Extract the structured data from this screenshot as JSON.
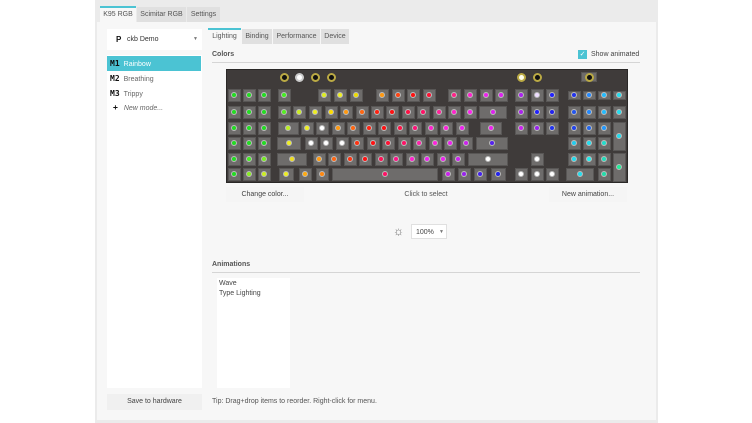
{
  "device_tabs": [
    {
      "label": "K95 RGB",
      "active": true
    },
    {
      "label": "Scimitar RGB"
    },
    {
      "label": "Settings"
    }
  ],
  "profile": {
    "letter": "P",
    "name": "ckb Demo"
  },
  "modes": [
    {
      "id": "M1",
      "name": "Rainbow",
      "selected": true
    },
    {
      "id": "M2",
      "name": "Breathing"
    },
    {
      "id": "M3",
      "name": "Trippy"
    }
  ],
  "new_mode": {
    "icon": "+",
    "label": "New mode..."
  },
  "save_hardware": "Save to hardware",
  "sub_tabs": [
    {
      "label": "Lighting",
      "active": true
    },
    {
      "label": "Binding"
    },
    {
      "label": "Performance"
    },
    {
      "label": "Device"
    }
  ],
  "colors_label": "Colors",
  "show_animated": {
    "label": "Show animated",
    "checked": true
  },
  "accent": "#4bc3d3",
  "keyboard": {
    "top_row": [
      "#111111",
      "#ffffff",
      "#111111",
      "#111111",
      "#ffffee",
      "#111111",
      "#111111"
    ],
    "rows": [
      [
        "#22dd22",
        "#22dd22",
        "#22dd22",
        "#44ee22",
        "#ddee22",
        "#eeee22",
        "#eedd00",
        "#ff9911",
        "#ff4411",
        "#ff1111",
        "#ff1133",
        "#ff2288",
        "#ff22cc",
        "#ee22ee",
        "#dd22ee",
        "#aa22ee",
        "#eeddff",
        "#2222ff",
        "#2233ee",
        "#2288ff",
        "#22bbff",
        "#22ddee",
        "#22eeee"
      ],
      [
        "#22dd22",
        "#22dd22",
        "#22dd22",
        "#55ee22",
        "#ccee22",
        "#eeee22",
        "#ffdd00",
        "#ff9911",
        "#ff6611",
        "#ff2211",
        "#ff1111",
        "#ff1144",
        "#ff1166",
        "#ff2299",
        "#ff22cc",
        "#ff22ee",
        "#dd22ee",
        "#aa22ee",
        "#2222ff",
        "#2222ee",
        "#2255ee",
        "#2288ff",
        "#22bbff",
        "#22ddee",
        "#22eecc"
      ],
      [
        "#22dd22",
        "#22dd22",
        "#22dd22",
        "#bbee22",
        "#eeee22",
        "#ffffff",
        "#ff9911",
        "#ff6611",
        "#ff2211",
        "#ff1111",
        "#ff1144",
        "#ff1177",
        "#ff22cc",
        "#ff22dd",
        "#ee22ee",
        "#ee22ee",
        "#cc22ee",
        "#9922ee",
        "#2233ee",
        "#2244ee",
        "#2266ee",
        "#2299ff",
        "#22ddee",
        "#22ddcc",
        "#22ccaa"
      ],
      [
        "#22dd22",
        "#22dd22",
        "#22dd22",
        "#eeee22",
        "#ffffff",
        "#ffffff",
        "#ffffff",
        "#ff3311",
        "#ff1111",
        "#ff1133",
        "#ff1166",
        "#ff22aa",
        "#ff22dd",
        "#ee22ee",
        "#cc22ee",
        "#5522ee",
        "#22ccee",
        "#22ddee",
        "#22ddcc"
      ],
      [
        "#22dd22",
        "#44ee22",
        "#77ee22",
        "#eedd22",
        "#ff9911",
        "#ff6611",
        "#ff3311",
        "#ff1111",
        "#ff1155",
        "#ff1188",
        "#ff22cc",
        "#ee22ee",
        "#ee22ee",
        "#cc22ee",
        "#ffffff",
        "#ffffff",
        "#22ddee",
        "#22eeee",
        "#22ddbb",
        "#22ee99"
      ],
      [
        "#22dd22",
        "#88ee22",
        "#ccee22",
        "#eeee22",
        "#ffaa11",
        "#ff8811",
        "#ff1166",
        "#cc22ee",
        "#9922ee",
        "#4422ee",
        "#2222ee",
        "#ffffff",
        "#ffffff",
        "#ffffff",
        "#22ddee",
        "#22ddaa"
      ]
    ]
  },
  "change_color": "Change color...",
  "click_to_select": "Click to select",
  "new_animation": "New animation...",
  "brightness": {
    "icon": "sun-icon",
    "value": "100%"
  },
  "animations_label": "Animations",
  "animations": [
    "Wave",
    "Type Lighting"
  ],
  "tip": "Tip: Drag+drop items to reorder. Right-click for menu."
}
